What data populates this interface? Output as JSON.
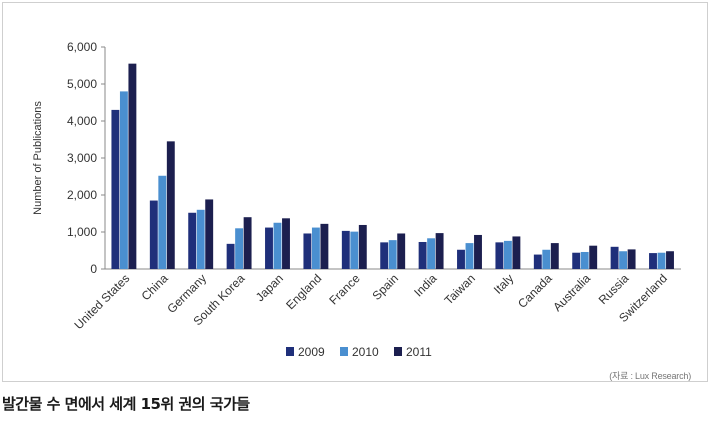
{
  "chart_data": {
    "type": "bar",
    "ylabel": "Number of Publications",
    "ylim": [
      0,
      6000
    ],
    "yticks": [
      "0",
      "1,000",
      "2,000",
      "3,000",
      "4,000",
      "5,000",
      "6,000"
    ],
    "ytick_values": [
      0,
      1000,
      2000,
      3000,
      4000,
      5000,
      6000
    ],
    "categories": [
      "United States",
      "China",
      "Germany",
      "South Korea",
      "Japan",
      "England",
      "France",
      "Spain",
      "India",
      "Taiwan",
      "Italy",
      "Canada",
      "Australia",
      "Russia",
      "Switzerland"
    ],
    "series": [
      {
        "name": "2009",
        "color": "#1f2f7a",
        "values": [
          4300,
          1850,
          1520,
          680,
          1120,
          960,
          1030,
          720,
          730,
          520,
          720,
          390,
          440,
          600,
          430
        ]
      },
      {
        "name": "2010",
        "color": "#4a8fd0",
        "values": [
          4800,
          2520,
          1600,
          1100,
          1250,
          1120,
          1010,
          780,
          830,
          700,
          760,
          520,
          460,
          480,
          440
        ]
      },
      {
        "name": "2011",
        "color": "#1c1f4f",
        "values": [
          5550,
          3450,
          1880,
          1400,
          1370,
          1220,
          1190,
          960,
          970,
          920,
          880,
          700,
          630,
          530,
          480
        ]
      }
    ],
    "grid": false,
    "legend_position": "bottom-center"
  },
  "source_note": "(자료 : Lux Research)",
  "caption": "발간물 수 면에서 세계 15위 권의 국가들"
}
